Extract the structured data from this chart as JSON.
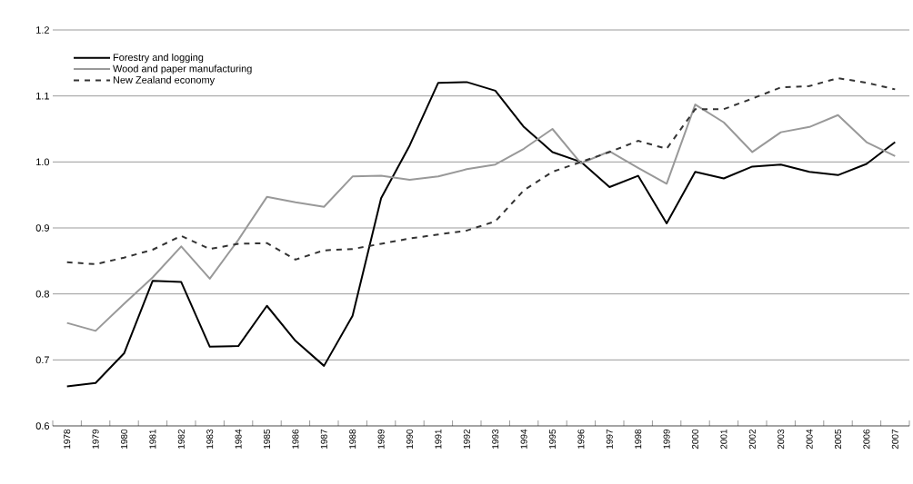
{
  "chart_data": {
    "type": "line",
    "categories": [
      "1978",
      "1979",
      "1980",
      "1981",
      "1982",
      "1983",
      "1984",
      "1985",
      "1986",
      "1987",
      "1988",
      "1989",
      "1990",
      "1991",
      "1992",
      "1993",
      "1994",
      "1995",
      "1996",
      "1997",
      "1998",
      "1999",
      "2000",
      "2001",
      "2002",
      "2003",
      "2004",
      "2005",
      "2006",
      "2007"
    ],
    "series": [
      {
        "name": "Forestry and logging",
        "color": "#000000",
        "line_style": "solid",
        "values": [
          0.66,
          0.665,
          0.71,
          0.82,
          0.818,
          0.72,
          0.721,
          0.782,
          0.729,
          0.691,
          0.767,
          0.945,
          1.025,
          1.12,
          1.121,
          1.108,
          1.053,
          1.015,
          1.0,
          0.962,
          0.979,
          0.907,
          0.985,
          0.975,
          0.993,
          0.996,
          0.985,
          0.98,
          0.997,
          1.03
        ]
      },
      {
        "name": "Wood and paper manufacturing",
        "color": "#999999",
        "line_style": "solid",
        "values": [
          0.756,
          0.744,
          0.785,
          0.825,
          0.872,
          0.823,
          0.882,
          0.947,
          0.939,
          0.932,
          0.978,
          0.979,
          0.973,
          0.978,
          0.989,
          0.996,
          1.02,
          1.05,
          0.998,
          1.016,
          0.991,
          0.967,
          1.087,
          1.06,
          1.015,
          1.045,
          1.053,
          1.071,
          1.03,
          1.009
        ]
      },
      {
        "name": "New Zealand economy",
        "color": "#333333",
        "line_style": "dashed",
        "values": [
          0.848,
          0.845,
          0.855,
          0.867,
          0.888,
          0.868,
          0.876,
          0.877,
          0.852,
          0.866,
          0.868,
          0.876,
          0.884,
          0.89,
          0.896,
          0.91,
          0.957,
          0.985,
          1.0,
          1.015,
          1.032,
          1.02,
          1.08,
          1.08,
          1.096,
          1.113,
          1.115,
          1.127,
          1.12,
          1.11
        ]
      }
    ],
    "ylim": [
      0.6,
      1.2
    ],
    "yticks": [
      0.6,
      0.7,
      0.8,
      0.9,
      {
        "value": 1.0,
        "label": "1.0"
      },
      1.1,
      1.2
    ],
    "grid": "y",
    "legend": "top left",
    "marker": "none"
  }
}
